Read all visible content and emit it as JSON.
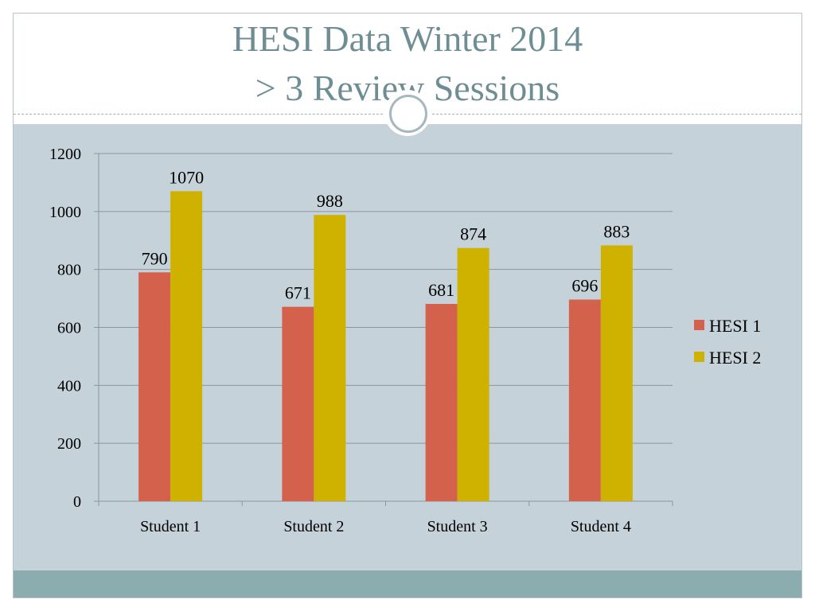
{
  "slide": {
    "title_line1": "HESI Data Winter 2014",
    "title_line2": "> 3 Review Sessions"
  },
  "colors": {
    "title": "#6e8e93",
    "content_background": "#c5d2d9",
    "footer_band": "#8badaf",
    "gridline": "#8c969a",
    "hesi1": "#d4614c",
    "hesi2": "#cfb200"
  },
  "chart_data": {
    "type": "bar",
    "categories": [
      "Student 1",
      "Student 2",
      "Student 3",
      "Student 4"
    ],
    "series": [
      {
        "name": "HESI 1",
        "values": [
          790,
          671,
          681,
          696
        ],
        "color": "#d4614c"
      },
      {
        "name": "HESI 2",
        "values": [
          1070,
          988,
          874,
          883
        ],
        "color": "#cfb200"
      }
    ],
    "yticks": [
      0,
      200,
      400,
      600,
      800,
      1000,
      1200
    ],
    "ylim": [
      0,
      1200
    ],
    "grid": true,
    "legend": "right",
    "data_labels": true
  }
}
